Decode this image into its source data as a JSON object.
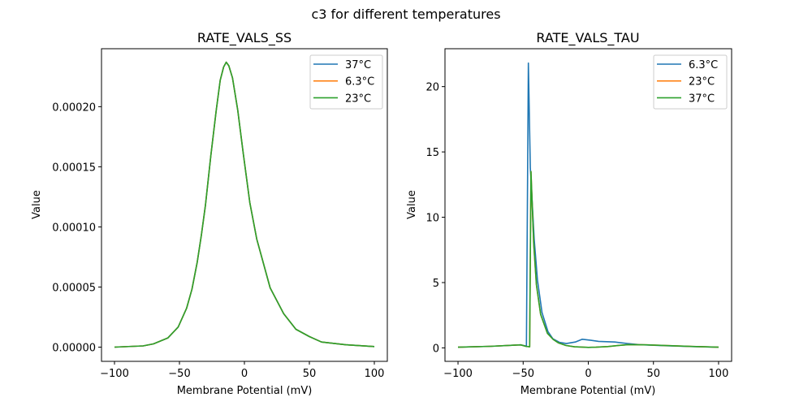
{
  "figure": {
    "suptitle": "c3 for different temperatures"
  },
  "chart_data": [
    {
      "type": "line",
      "title": "RATE_VALS_SS",
      "xlabel": "Membrane Potential (mV)",
      "ylabel": "Value",
      "xlim": [
        -110,
        110
      ],
      "ylim": [
        -1.18e-05,
        0.0002482
      ],
      "xticks": [
        -100,
        -50,
        0,
        50,
        100
      ],
      "xtick_labels": [
        "−100",
        "−50",
        "0",
        "50",
        "100"
      ],
      "yticks": [
        0,
        5e-05,
        0.0001,
        0.00015,
        0.0002
      ],
      "ytick_labels": [
        "0.00000",
        "0.00005",
        "0.00010",
        "0.00015",
        "0.00020"
      ],
      "grid": false,
      "legend_position": "top-right",
      "series": [
        {
          "name": "37°C",
          "color": "#1f77b4",
          "x": [
            -100,
            -78,
            -70,
            -59,
            -51,
            -44.5,
            -40.4,
            -36.3,
            -33.1,
            -30,
            -25.9,
            -21.7,
            -18.6,
            -16,
            -14,
            -12,
            -9.2,
            -5.1,
            -0.9,
            4.2,
            9.5,
            19.8,
            30.2,
            39.6,
            50,
            59.3,
            78,
            100
          ],
          "y": [
            0,
            1e-06,
            2.7e-06,
            7.6e-06,
            1.67e-05,
            3.24e-05,
            4.82e-05,
            7.07e-05,
            9.32e-05,
            0.000118,
            0.000159,
            0.000197,
            0.000222,
            0.000233,
            0.000237,
            0.000234,
            0.000224,
            0.000197,
            0.000161,
            0.00012,
            8.99e-05,
            4.93e-05,
            2.79e-05,
            1.49e-05,
            8.8e-06,
            4.3e-06,
            2e-06,
            5e-07
          ]
        },
        {
          "name": "6.3°C",
          "color": "#ff7f0e",
          "x": [
            -100,
            -78,
            -70,
            -59,
            -51,
            -44.5,
            -40.4,
            -36.3,
            -33.1,
            -30,
            -25.9,
            -21.7,
            -18.6,
            -16,
            -14,
            -12,
            -9.2,
            -5.1,
            -0.9,
            4.2,
            9.5,
            19.8,
            30.2,
            39.6,
            50,
            59.3,
            78,
            100
          ],
          "y": [
            0,
            1e-06,
            2.7e-06,
            7.6e-06,
            1.67e-05,
            3.24e-05,
            4.82e-05,
            7.07e-05,
            9.32e-05,
            0.000118,
            0.000159,
            0.000197,
            0.000222,
            0.000233,
            0.000237,
            0.000234,
            0.000224,
            0.000197,
            0.000161,
            0.00012,
            8.99e-05,
            4.93e-05,
            2.79e-05,
            1.49e-05,
            8.8e-06,
            4.3e-06,
            2e-06,
            5e-07
          ]
        },
        {
          "name": "23°C",
          "color": "#2ca02c",
          "x": [
            -100,
            -78,
            -70,
            -59,
            -51,
            -44.5,
            -40.4,
            -36.3,
            -33.1,
            -30,
            -25.9,
            -21.7,
            -18.6,
            -16,
            -14,
            -12,
            -9.2,
            -5.1,
            -0.9,
            4.2,
            9.5,
            19.8,
            30.2,
            39.6,
            50,
            59.3,
            78,
            100
          ],
          "y": [
            0,
            1e-06,
            2.7e-06,
            7.6e-06,
            1.67e-05,
            3.24e-05,
            4.82e-05,
            7.07e-05,
            9.32e-05,
            0.000118,
            0.000159,
            0.000197,
            0.000222,
            0.000233,
            0.000237,
            0.000234,
            0.000224,
            0.000197,
            0.000161,
            0.00012,
            8.99e-05,
            4.93e-05,
            2.79e-05,
            1.49e-05,
            8.8e-06,
            4.3e-06,
            2e-06,
            5e-07
          ]
        }
      ]
    },
    {
      "type": "line",
      "title": "RATE_VALS_TAU",
      "xlabel": "Membrane Potential (mV)",
      "ylabel": "Value",
      "xlim": [
        -110,
        110
      ],
      "ylim": [
        -1.03,
        22.9
      ],
      "xticks": [
        -100,
        -50,
        0,
        50,
        100
      ],
      "xtick_labels": [
        "−100",
        "−50",
        "0",
        "50",
        "100"
      ],
      "yticks": [
        0,
        5,
        10,
        15,
        20
      ],
      "ytick_labels": [
        "0",
        "5",
        "10",
        "15",
        "20"
      ],
      "grid": false,
      "legend_position": "top-right",
      "series": [
        {
          "name": "6.3°C",
          "color": "#1f77b4",
          "x": [
            -100,
            -75,
            -52,
            -48,
            -47.5,
            -46,
            -44.5,
            -41.5,
            -39,
            -35.5,
            -31,
            -27.2,
            -22,
            -16.8,
            -10,
            -4.6,
            2,
            7.9,
            20.4,
            30,
            39,
            57.9,
            80,
            99.6
          ],
          "y": [
            0.05,
            0.12,
            0.23,
            0.15,
            0.1,
            21.8,
            13.8,
            8.3,
            5.2,
            2.7,
            1.25,
            0.7,
            0.42,
            0.33,
            0.45,
            0.66,
            0.58,
            0.5,
            0.45,
            0.33,
            0.25,
            0.17,
            0.1,
            0.05
          ]
        },
        {
          "name": "23°C",
          "color": "#ff7f0e",
          "x": [
            -100,
            -75,
            -52,
            -48,
            -45,
            -44,
            -41.9,
            -39.8,
            -36.6,
            -31.4,
            -27,
            -23,
            -17,
            -10.6,
            0,
            5.8,
            15,
            25,
            30.8,
            45,
            58,
            80,
            100
          ],
          "y": [
            0.05,
            0.12,
            0.23,
            0.12,
            0.08,
            13.5,
            7.95,
            4.84,
            2.57,
            1.12,
            0.65,
            0.39,
            0.18,
            0.08,
            0.04,
            0.05,
            0.1,
            0.2,
            0.25,
            0.23,
            0.19,
            0.11,
            0.05
          ]
        },
        {
          "name": "37°C",
          "color": "#2ca02c",
          "x": [
            -100,
            -75,
            -52,
            -48,
            -45,
            -44,
            -41.9,
            -39.8,
            -36.6,
            -31.4,
            -27,
            -23,
            -17,
            -10.6,
            0,
            5.8,
            15,
            25,
            30.8,
            45,
            58,
            80,
            100
          ],
          "y": [
            0.05,
            0.12,
            0.23,
            0.12,
            0.08,
            13.5,
            7.95,
            4.84,
            2.57,
            1.12,
            0.65,
            0.39,
            0.18,
            0.08,
            0.04,
            0.05,
            0.1,
            0.2,
            0.25,
            0.23,
            0.19,
            0.11,
            0.05
          ]
        }
      ]
    }
  ]
}
